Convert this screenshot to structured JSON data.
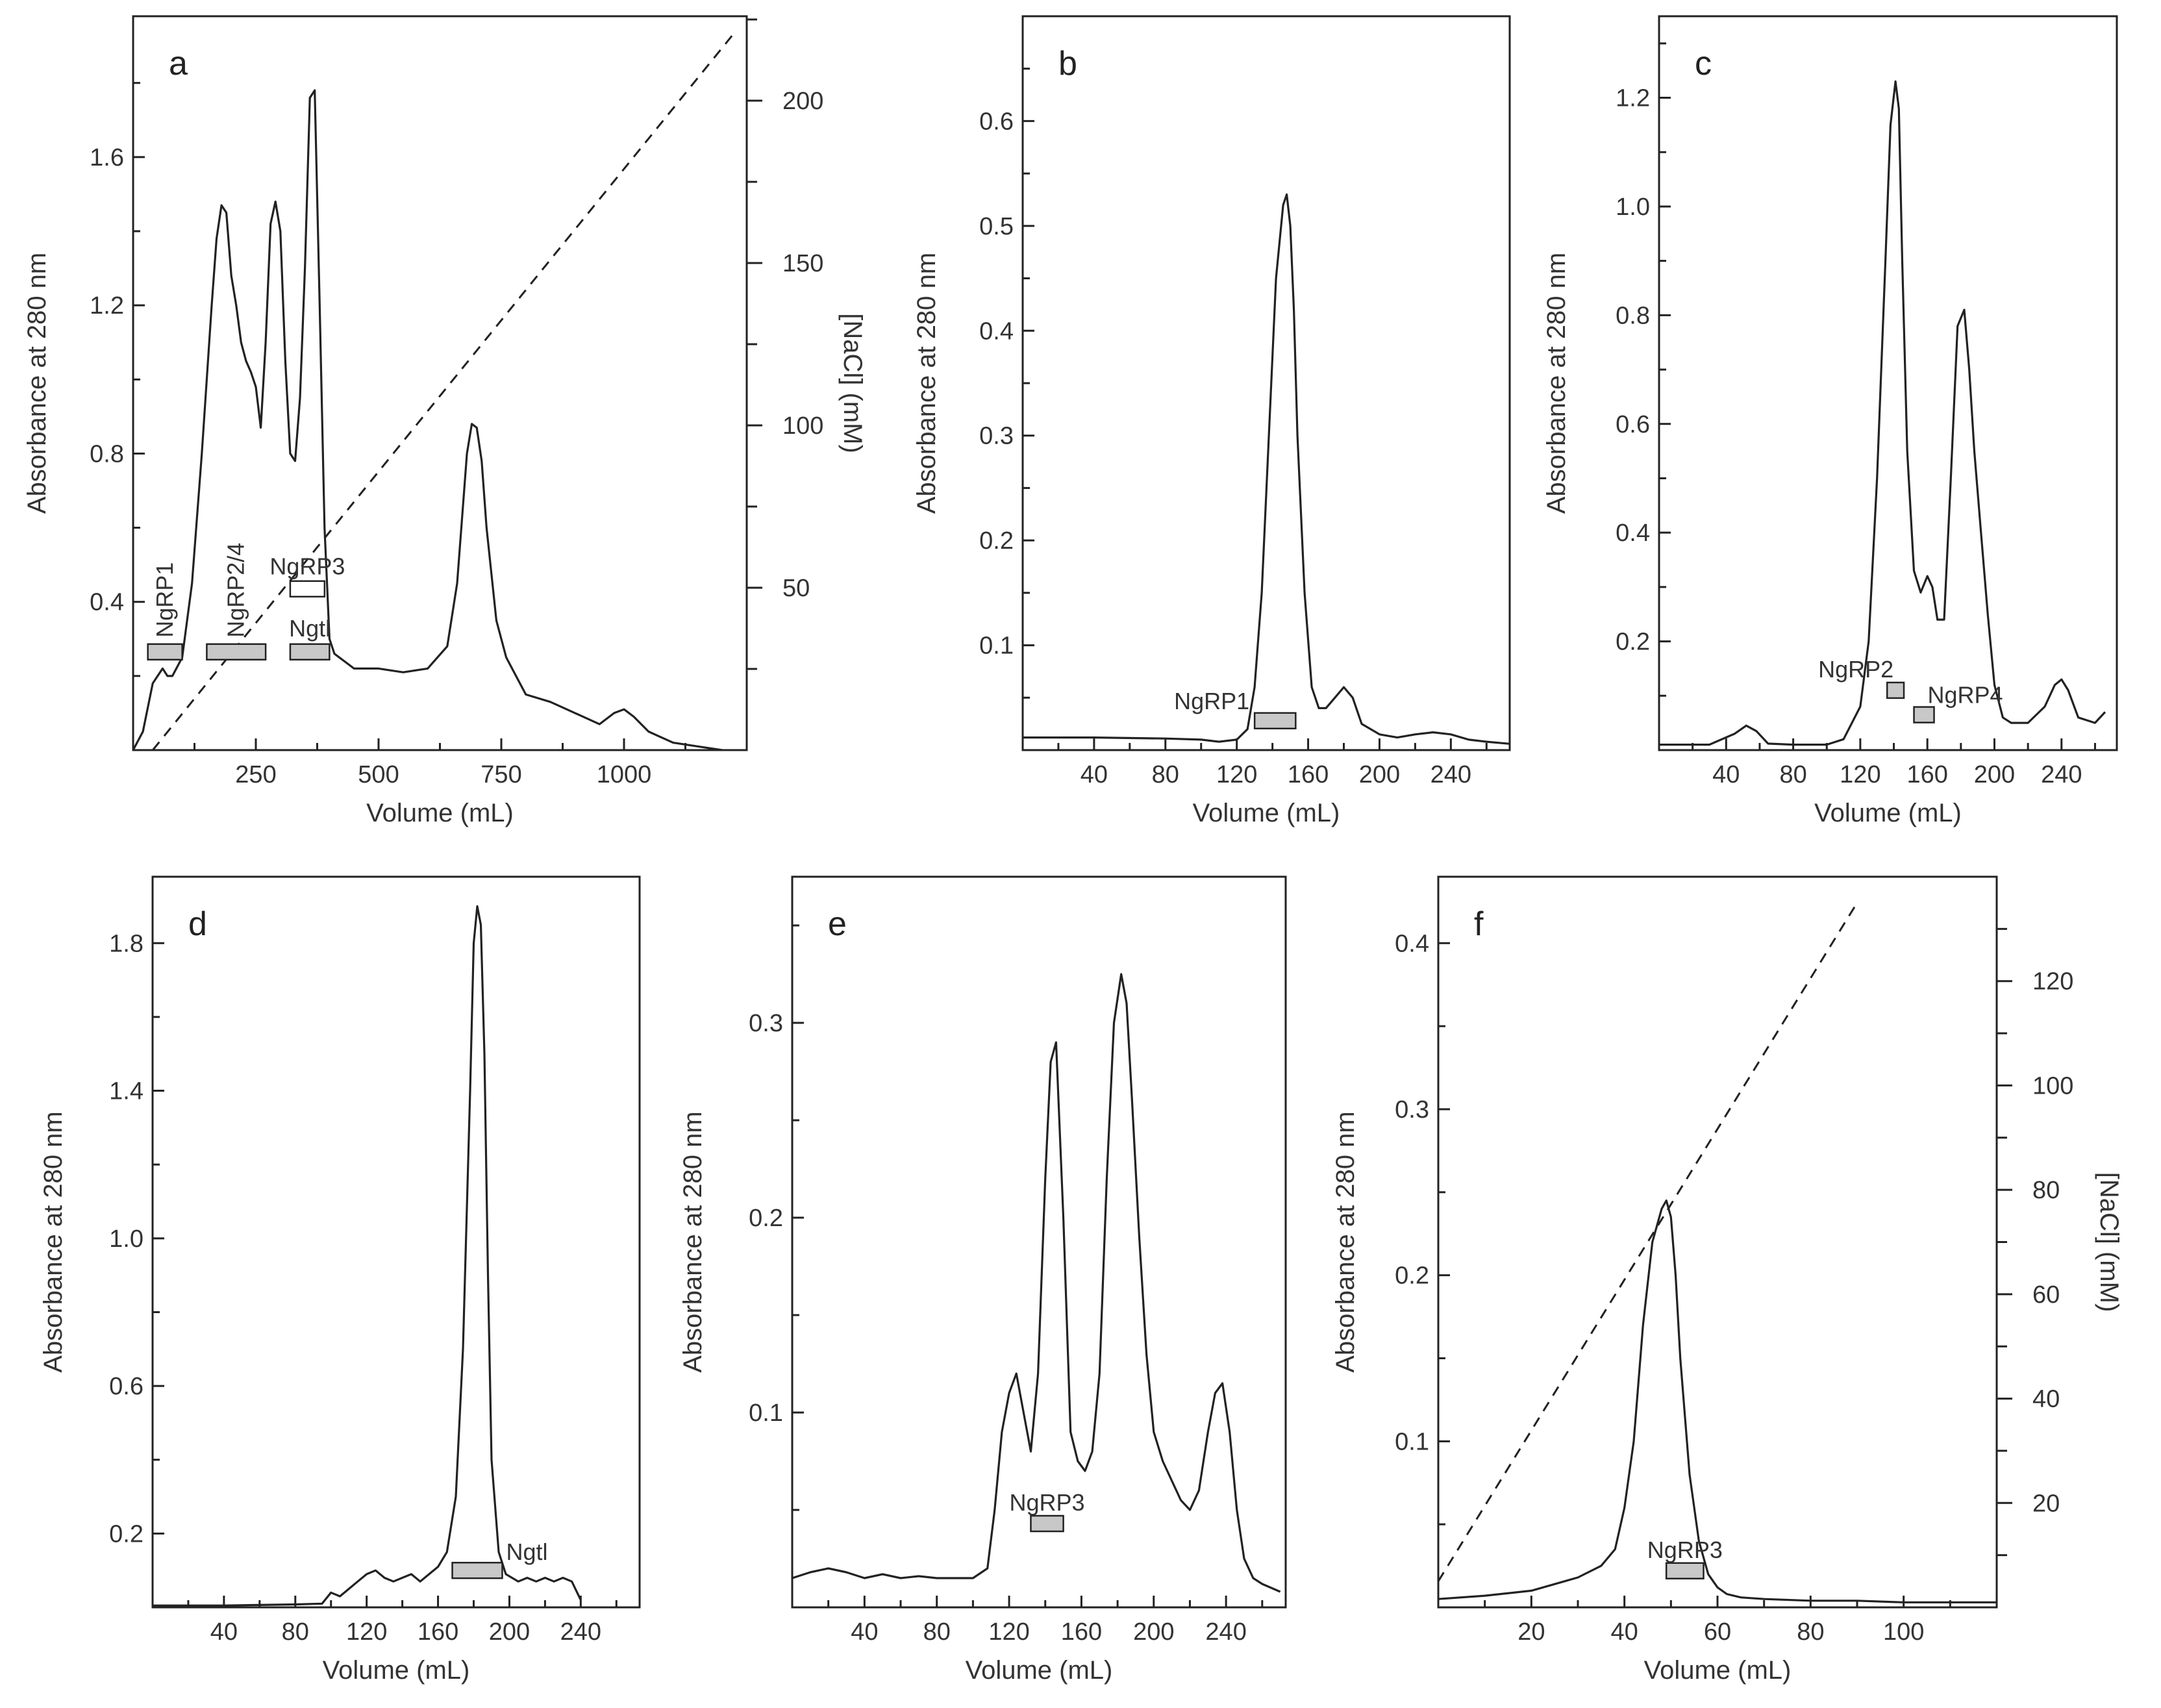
{
  "chart_data": [
    {
      "panel": "a",
      "type": "line",
      "xlabel": "Volume (mL)",
      "ylabel": "Absorbance at 280 nm",
      "y2label": "[NaCl] (mM)",
      "xlim": [
        0,
        1250
      ],
      "ylim": [
        0,
        1.98
      ],
      "y2lim": [
        0,
        226
      ],
      "xticks_minor": [
        125,
        375,
        625,
        875,
        1125
      ],
      "xticks": [
        {
          "v": 250,
          "label": "250"
        },
        {
          "v": 500,
          "label": "500"
        },
        {
          "v": 750,
          "label": "750"
        },
        {
          "v": 1000,
          "label": "1000"
        }
      ],
      "yticks": [
        {
          "v": 0.4,
          "label": "0.4"
        },
        {
          "v": 0.8,
          "label": "0.8"
        },
        {
          "v": 1.2,
          "label": "1.2"
        },
        {
          "v": 1.6,
          "label": "1.6"
        }
      ],
      "yticks_minor": [
        0.2,
        0.6,
        1.0,
        1.4,
        1.8
      ],
      "y2ticks": [
        {
          "v": 50,
          "label": "50"
        },
        {
          "v": 100,
          "label": "100"
        },
        {
          "v": 150,
          "label": "150"
        },
        {
          "v": 200,
          "label": "200"
        }
      ],
      "y2ticks_minor": [
        25,
        75,
        125,
        175,
        225
      ],
      "series": [
        {
          "name": "A280",
          "x": [
            0,
            20,
            40,
            60,
            70,
            80,
            100,
            120,
            140,
            150,
            160,
            170,
            180,
            190,
            200,
            210,
            220,
            230,
            240,
            250,
            260,
            270,
            280,
            290,
            300,
            310,
            320,
            330,
            340,
            350,
            360,
            370,
            380,
            390,
            400,
            410,
            420,
            430,
            450,
            500,
            550,
            600,
            640,
            660,
            680,
            690,
            700,
            710,
            720,
            740,
            760,
            780,
            800,
            850,
            900,
            950,
            980,
            1000,
            1020,
            1050,
            1100,
            1150,
            1200
          ],
          "y": [
            0,
            0.05,
            0.18,
            0.22,
            0.2,
            0.2,
            0.25,
            0.45,
            0.8,
            1.0,
            1.2,
            1.38,
            1.47,
            1.45,
            1.28,
            1.2,
            1.1,
            1.05,
            1.02,
            0.98,
            0.87,
            1.1,
            1.42,
            1.48,
            1.4,
            1.05,
            0.8,
            0.78,
            0.95,
            1.3,
            1.76,
            1.78,
            1.2,
            0.6,
            0.3,
            0.26,
            0.25,
            0.24,
            0.22,
            0.22,
            0.21,
            0.22,
            0.28,
            0.45,
            0.8,
            0.88,
            0.87,
            0.78,
            0.6,
            0.35,
            0.25,
            0.2,
            0.15,
            0.13,
            0.1,
            0.07,
            0.1,
            0.11,
            0.09,
            0.05,
            0.02,
            0.01,
            0
          ]
        }
      ],
      "gradient": {
        "x": [
          40,
          1220
        ],
        "y2": [
          0,
          220
        ]
      },
      "fractions": [
        {
          "label": "NgRP1",
          "x0": 30,
          "x1": 100,
          "y": 0.265,
          "fill": "#c8c8c8",
          "rotated": true
        },
        {
          "label": "NgRP2/4",
          "x0": 150,
          "x1": 270,
          "y": 0.265,
          "fill": "#c8c8c8",
          "rotated": true
        },
        {
          "label": "NgRP3",
          "x0": 320,
          "x1": 390,
          "y": 0.435,
          "fill": "#ffffff",
          "rotated": false
        },
        {
          "label": "Ngtl",
          "x0": 320,
          "x1": 400,
          "y": 0.265,
          "fill": "#c8c8c8",
          "rotated": false
        }
      ]
    },
    {
      "panel": "b",
      "type": "line",
      "xlabel": "Volume (mL)",
      "ylabel": "Absorbance at 280 nm",
      "xlim": [
        0,
        273
      ],
      "ylim": [
        0,
        0.7
      ],
      "xticks": [
        {
          "v": 40,
          "label": "40"
        },
        {
          "v": 80,
          "label": "80"
        },
        {
          "v": 120,
          "label": "120"
        },
        {
          "v": 160,
          "label": "160"
        },
        {
          "v": 200,
          "label": "200"
        },
        {
          "v": 240,
          "label": "240"
        }
      ],
      "xticks_minor": [
        20,
        60,
        100,
        140,
        180,
        220,
        260
      ],
      "yticks": [
        {
          "v": 0.1,
          "label": "0.1"
        },
        {
          "v": 0.2,
          "label": "0.2"
        },
        {
          "v": 0.3,
          "label": "0.3"
        },
        {
          "v": 0.4,
          "label": "0.4"
        },
        {
          "v": 0.5,
          "label": "0.5"
        },
        {
          "v": 0.6,
          "label": "0.6"
        }
      ],
      "yticks_minor": [
        0.05,
        0.15,
        0.25,
        0.35,
        0.45,
        0.55,
        0.65
      ],
      "series": [
        {
          "name": "A280",
          "x": [
            0,
            40,
            80,
            100,
            110,
            120,
            126,
            130,
            134,
            138,
            142,
            146,
            148,
            150,
            152,
            154,
            158,
            162,
            166,
            170,
            175,
            180,
            185,
            190,
            200,
            210,
            220,
            230,
            240,
            250,
            260,
            273
          ],
          "y": [
            0.012,
            0.012,
            0.011,
            0.01,
            0.008,
            0.01,
            0.02,
            0.06,
            0.15,
            0.3,
            0.45,
            0.52,
            0.53,
            0.5,
            0.42,
            0.3,
            0.15,
            0.06,
            0.04,
            0.04,
            0.05,
            0.06,
            0.05,
            0.025,
            0.015,
            0.012,
            0.015,
            0.017,
            0.015,
            0.01,
            0.008,
            0.006
          ]
        }
      ],
      "fractions": [
        {
          "label": "NgRP1",
          "x0": 130,
          "x1": 153,
          "y": 0.028,
          "fill": "#c8c8c8",
          "rotated": false
        }
      ]
    },
    {
      "panel": "c",
      "type": "line",
      "xlabel": "Volume (mL)",
      "ylabel": "Absorbance at 280 nm",
      "xlim": [
        0,
        273
      ],
      "ylim": [
        0,
        1.35
      ],
      "xticks": [
        {
          "v": 40,
          "label": "40"
        },
        {
          "v": 80,
          "label": "80"
        },
        {
          "v": 120,
          "label": "120"
        },
        {
          "v": 160,
          "label": "160"
        },
        {
          "v": 200,
          "label": "200"
        },
        {
          "v": 240,
          "label": "240"
        }
      ],
      "xticks_minor": [
        20,
        60,
        100,
        140,
        180,
        220,
        260
      ],
      "yticks": [
        {
          "v": 0.2,
          "label": "0.2"
        },
        {
          "v": 0.4,
          "label": "0.4"
        },
        {
          "v": 0.6,
          "label": "0.6"
        },
        {
          "v": 0.8,
          "label": "0.8"
        },
        {
          "v": 1.0,
          "label": "1.0"
        },
        {
          "v": 1.2,
          "label": "1.2"
        }
      ],
      "yticks_minor": [
        0.1,
        0.3,
        0.5,
        0.7,
        0.9,
        1.1,
        1.3
      ],
      "series": [
        {
          "name": "A280",
          "x": [
            0,
            30,
            45,
            52,
            58,
            65,
            80,
            100,
            110,
            120,
            125,
            130,
            135,
            138,
            141,
            143,
            145,
            148,
            152,
            156,
            160,
            163,
            166,
            170,
            174,
            178,
            182,
            185,
            188,
            192,
            196,
            200,
            205,
            210,
            220,
            230,
            236,
            240,
            244,
            250,
            260,
            266
          ],
          "y": [
            0.01,
            0.01,
            0.03,
            0.045,
            0.035,
            0.012,
            0.01,
            0.01,
            0.02,
            0.08,
            0.2,
            0.5,
            0.9,
            1.15,
            1.23,
            1.18,
            0.9,
            0.55,
            0.33,
            0.29,
            0.32,
            0.3,
            0.24,
            0.24,
            0.5,
            0.78,
            0.81,
            0.7,
            0.55,
            0.4,
            0.25,
            0.12,
            0.06,
            0.05,
            0.05,
            0.08,
            0.12,
            0.13,
            0.11,
            0.06,
            0.05,
            0.07
          ]
        }
      ],
      "fractions": [
        {
          "label": "NgRP2",
          "x0": 136,
          "x1": 146,
          "y": 0.11,
          "fill": "#c8c8c8",
          "rotated": false
        },
        {
          "label": "NgRP4",
          "x0": 152,
          "x1": 164,
          "y": 0.065,
          "fill": "#c8c8c8",
          "rotated": false
        }
      ]
    },
    {
      "panel": "d",
      "type": "line",
      "xlabel": "Volume (mL)",
      "ylabel": "Absorbance at 280 nm",
      "xlim": [
        0,
        273
      ],
      "ylim": [
        0,
        1.98
      ],
      "xticks": [
        {
          "v": 40,
          "label": "40"
        },
        {
          "v": 80,
          "label": "80"
        },
        {
          "v": 120,
          "label": "120"
        },
        {
          "v": 160,
          "label": "160"
        },
        {
          "v": 200,
          "label": "200"
        },
        {
          "v": 240,
          "label": "240"
        }
      ],
      "xticks_minor": [
        20,
        60,
        100,
        140,
        180,
        220,
        260
      ],
      "yticks": [
        {
          "v": 0.2,
          "label": "0.2"
        },
        {
          "v": 0.6,
          "label": "0.6"
        },
        {
          "v": 1.0,
          "label": "1.0"
        },
        {
          "v": 1.4,
          "label": "1.4"
        },
        {
          "v": 1.8,
          "label": "1.8"
        }
      ],
      "yticks_minor": [
        0.4,
        0.8,
        1.2,
        1.6
      ],
      "series": [
        {
          "name": "A280",
          "x": [
            0,
            40,
            80,
            95,
            100,
            105,
            110,
            115,
            120,
            125,
            130,
            135,
            140,
            145,
            150,
            155,
            160,
            165,
            170,
            174,
            178,
            180,
            182,
            184,
            186,
            188,
            190,
            194,
            198,
            205,
            210,
            215,
            220,
            225,
            230,
            235,
            240
          ],
          "y": [
            0.005,
            0.005,
            0.008,
            0.01,
            0.04,
            0.03,
            0.05,
            0.07,
            0.09,
            0.1,
            0.08,
            0.07,
            0.08,
            0.09,
            0.07,
            0.09,
            0.11,
            0.15,
            0.3,
            0.7,
            1.4,
            1.8,
            1.9,
            1.85,
            1.5,
            0.9,
            0.4,
            0.15,
            0.09,
            0.07,
            0.08,
            0.07,
            0.08,
            0.07,
            0.08,
            0.07,
            0.02
          ]
        }
      ],
      "fractions": [
        {
          "label": "Ngtl",
          "x0": 168,
          "x1": 196,
          "y": 0.1,
          "fill": "#c8c8c8",
          "rotated": false
        }
      ]
    },
    {
      "panel": "e",
      "type": "line",
      "xlabel": "Volume (mL)",
      "ylabel": "Absorbance at 280 nm",
      "xlim": [
        0,
        273
      ],
      "ylim": [
        0,
        0.375
      ],
      "xticks": [
        {
          "v": 40,
          "label": "40"
        },
        {
          "v": 80,
          "label": "80"
        },
        {
          "v": 120,
          "label": "120"
        },
        {
          "v": 160,
          "label": "160"
        },
        {
          "v": 200,
          "label": "200"
        },
        {
          "v": 240,
          "label": "240"
        }
      ],
      "xticks_minor": [
        20,
        60,
        100,
        140,
        180,
        220,
        260
      ],
      "yticks": [
        {
          "v": 0.1,
          "label": "0.1"
        },
        {
          "v": 0.2,
          "label": "0.2"
        },
        {
          "v": 0.3,
          "label": "0.3"
        }
      ],
      "yticks_minor": [
        0.05,
        0.15,
        0.25,
        0.35
      ],
      "series": [
        {
          "name": "A280",
          "x": [
            0,
            10,
            20,
            30,
            40,
            50,
            60,
            70,
            80,
            90,
            100,
            108,
            112,
            116,
            120,
            124,
            128,
            132,
            136,
            140,
            143,
            146,
            150,
            154,
            158,
            162,
            166,
            170,
            174,
            178,
            182,
            185,
            188,
            192,
            196,
            200,
            205,
            210,
            215,
            220,
            225,
            230,
            234,
            238,
            242,
            246,
            250,
            255,
            260,
            265,
            270
          ],
          "y": [
            0.015,
            0.018,
            0.02,
            0.018,
            0.015,
            0.017,
            0.015,
            0.016,
            0.015,
            0.015,
            0.015,
            0.02,
            0.05,
            0.09,
            0.11,
            0.12,
            0.1,
            0.08,
            0.12,
            0.22,
            0.28,
            0.29,
            0.2,
            0.09,
            0.075,
            0.07,
            0.08,
            0.12,
            0.22,
            0.3,
            0.325,
            0.31,
            0.26,
            0.19,
            0.13,
            0.09,
            0.075,
            0.065,
            0.055,
            0.05,
            0.06,
            0.09,
            0.11,
            0.115,
            0.09,
            0.05,
            0.025,
            0.015,
            0.012,
            0.01,
            0.008
          ]
        }
      ],
      "fractions": [
        {
          "label": "NgRP3",
          "x0": 132,
          "x1": 150,
          "y": 0.043,
          "fill": "#c8c8c8",
          "rotated": false
        }
      ]
    },
    {
      "panel": "f",
      "type": "line",
      "xlabel": "Volume (mL)",
      "ylabel": "Absorbance at 280 nm",
      "y2label": "[NaCl] (mM)",
      "xlim": [
        0,
        120
      ],
      "ylim": [
        0,
        0.44
      ],
      "y2lim": [
        0,
        140
      ],
      "xticks": [
        {
          "v": 20,
          "label": "20"
        },
        {
          "v": 40,
          "label": "40"
        },
        {
          "v": 60,
          "label": "60"
        },
        {
          "v": 80,
          "label": "80"
        },
        {
          "v": 100,
          "label": "100"
        }
      ],
      "xticks_minor": [
        10,
        30,
        50,
        70,
        90,
        110
      ],
      "yticks": [
        {
          "v": 0.1,
          "label": "0.1"
        },
        {
          "v": 0.2,
          "label": "0.2"
        },
        {
          "v": 0.3,
          "label": "0.3"
        },
        {
          "v": 0.4,
          "label": "0.4"
        }
      ],
      "yticks_minor": [
        0.05,
        0.15,
        0.25,
        0.35
      ],
      "y2ticks": [
        {
          "v": 20,
          "label": "20"
        },
        {
          "v": 40,
          "label": "40"
        },
        {
          "v": 60,
          "label": "60"
        },
        {
          "v": 80,
          "label": "80"
        },
        {
          "v": 100,
          "label": "100"
        },
        {
          "v": 120,
          "label": "120"
        }
      ],
      "y2ticks_minor": [
        10,
        30,
        50,
        70,
        90,
        110,
        130
      ],
      "series": [
        {
          "name": "A280",
          "x": [
            0,
            10,
            20,
            30,
            35,
            38,
            40,
            42,
            44,
            46,
            48,
            49,
            50,
            51,
            52,
            54,
            56,
            58,
            60,
            62,
            65,
            70,
            80,
            90,
            100,
            110,
            120
          ],
          "y": [
            0.005,
            0.007,
            0.01,
            0.018,
            0.025,
            0.035,
            0.06,
            0.1,
            0.17,
            0.22,
            0.24,
            0.245,
            0.235,
            0.2,
            0.15,
            0.08,
            0.04,
            0.02,
            0.012,
            0.008,
            0.006,
            0.005,
            0.004,
            0.004,
            0.003,
            0.003,
            0.003
          ]
        }
      ],
      "gradient": {
        "x": [
          0,
          90
        ],
        "y2": [
          5,
          135
        ]
      },
      "fractions": [
        {
          "label": "NgRP3",
          "x0": 49,
          "x1": 57,
          "y": 0.022,
          "fill": "#c8c8c8",
          "rotated": false
        }
      ]
    }
  ]
}
